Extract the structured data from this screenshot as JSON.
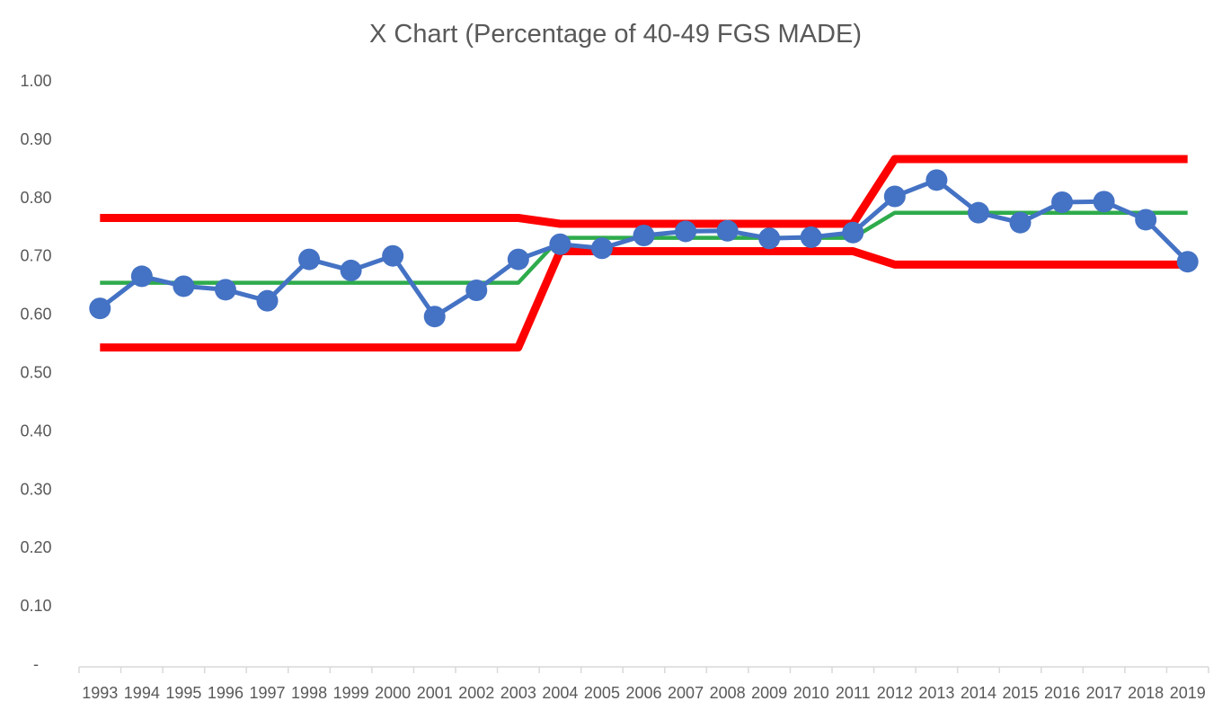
{
  "chart_data": {
    "type": "line",
    "title": "X Chart (Percentage of 40-49 FGS MADE)",
    "xlabel": "",
    "ylabel": "",
    "ylim": [
      0,
      1.0
    ],
    "y_tick_labels": [
      "-",
      "0.10",
      "0.20",
      "0.30",
      "0.40",
      "0.50",
      "0.60",
      "0.70",
      "0.80",
      "0.90",
      "1.00"
    ],
    "categories": [
      "1993",
      "1994",
      "1995",
      "1996",
      "1997",
      "1998",
      "1999",
      "2000",
      "2001",
      "2002",
      "2003",
      "2004",
      "2005",
      "2006",
      "2007",
      "2008",
      "2009",
      "2010",
      "2011",
      "2012",
      "2013",
      "2014",
      "2015",
      "2016",
      "2017",
      "2018",
      "2019"
    ],
    "grid": false,
    "legend": "none",
    "series": [
      {
        "role": "data",
        "color": "#4472C4",
        "marker": "circle",
        "values": [
          0.61,
          0.665,
          0.648,
          0.642,
          0.623,
          0.694,
          0.675,
          0.7,
          0.596,
          0.641,
          0.694,
          0.72,
          0.713,
          0.735,
          0.742,
          0.743,
          0.73,
          0.732,
          0.74,
          0.802,
          0.83,
          0.774,
          0.757,
          0.792,
          0.793,
          0.762,
          0.69
        ]
      },
      {
        "role": "center",
        "color": "#2EAB4C",
        "values": [
          0.654,
          0.654,
          0.654,
          0.654,
          0.654,
          0.654,
          0.654,
          0.654,
          0.654,
          0.654,
          0.654,
          0.731,
          0.731,
          0.731,
          0.731,
          0.731,
          0.731,
          0.731,
          0.731,
          0.774,
          0.774,
          0.774,
          0.774,
          0.774,
          0.774,
          0.774,
          0.774
        ]
      },
      {
        "role": "upper",
        "color": "#FF0000",
        "values": [
          0.765,
          0.765,
          0.765,
          0.765,
          0.765,
          0.765,
          0.765,
          0.765,
          0.765,
          0.765,
          0.765,
          0.755,
          0.755,
          0.755,
          0.755,
          0.755,
          0.755,
          0.755,
          0.755,
          0.866,
          0.866,
          0.866,
          0.866,
          0.866,
          0.866,
          0.866,
          0.866
        ]
      },
      {
        "role": "lower",
        "color": "#FF0000",
        "values": [
          0.543,
          0.543,
          0.543,
          0.543,
          0.543,
          0.543,
          0.543,
          0.543,
          0.543,
          0.543,
          0.543,
          0.708,
          0.708,
          0.708,
          0.708,
          0.708,
          0.708,
          0.708,
          0.708,
          0.685,
          0.685,
          0.685,
          0.685,
          0.685,
          0.685,
          0.685,
          0.685
        ]
      }
    ]
  }
}
